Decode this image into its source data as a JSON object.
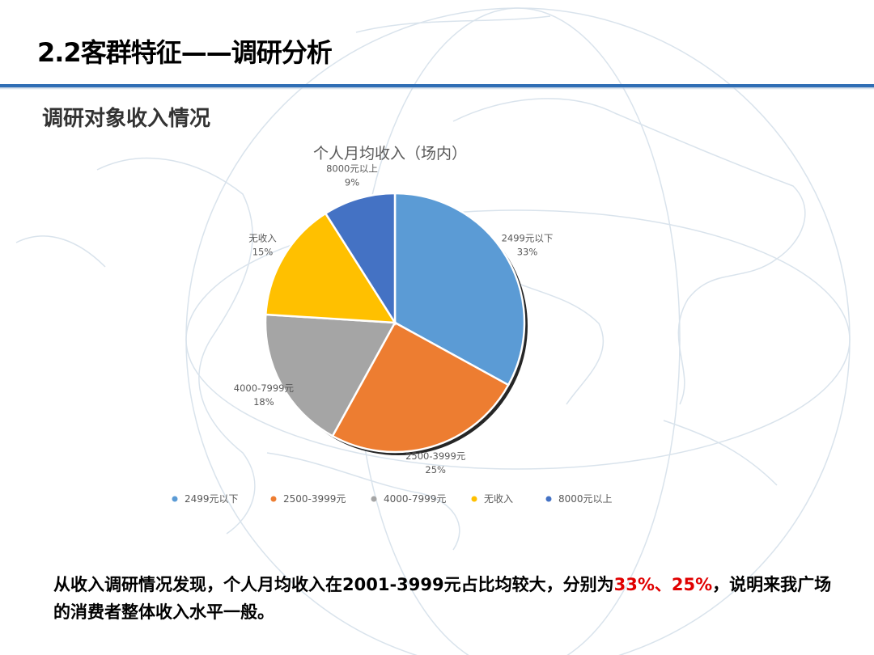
{
  "header": {
    "title": "2.2客群特征——调研分析",
    "accent_color": "#2f6eb5"
  },
  "section": {
    "heading": "调研对象收入情况"
  },
  "chart_data": {
    "type": "pie",
    "title": "个人月均收入（场内）",
    "legend_position": "bottom",
    "slices": [
      {
        "label": "2499元以下",
        "value": 33,
        "value_label": "33%",
        "color": "#5b9bd5"
      },
      {
        "label": "2500-3999元",
        "value": 25,
        "value_label": "25%",
        "color": "#ed7d31"
      },
      {
        "label": "4000-7999元",
        "value": 18,
        "value_label": "18%",
        "color": "#a5a5a5"
      },
      {
        "label": "无收入",
        "value": 15,
        "value_label": "15%",
        "color": "#ffc000"
      },
      {
        "label": "8000元以上",
        "value": 9,
        "value_label": "9%",
        "color": "#4472c4"
      }
    ]
  },
  "summary": {
    "text_before": "从收入调研情况发现，个人月均收入在2001-3999元占比均较大，分别为",
    "highlight_1": "33%",
    "separator": "、",
    "highlight_2": "25%",
    "text_after": "，说明来我广场的消费者整体收入水平一般。",
    "highlight_color": "#e00000"
  }
}
